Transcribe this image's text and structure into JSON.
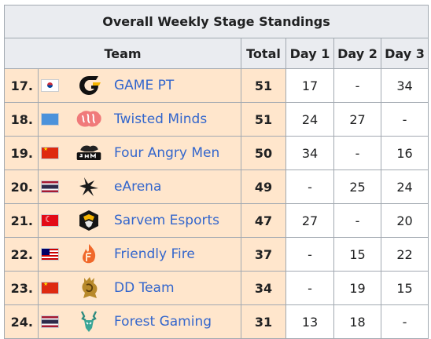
{
  "title": "Overall Weekly Stage Standings",
  "headers": {
    "team": "Team",
    "total": "Total",
    "day1": "Day 1",
    "day2": "Day 2",
    "day3": "Day 3"
  },
  "colors": {
    "highlight": "#ffe6cc",
    "header": "#eaecf0",
    "link": "#3366cc",
    "border": "#a2a9b1"
  },
  "rows": [
    {
      "rank": "17.",
      "flag": "south-korea-flag-icon",
      "logo": "game-pt-logo-icon",
      "team": "GAME PT",
      "total": "51",
      "day1": "17",
      "day2": "-",
      "day3": "34"
    },
    {
      "rank": "18.",
      "flag": "united-nations-flag-icon",
      "logo": "twisted-minds-logo-icon",
      "team": "Twisted Minds",
      "total": "51",
      "day1": "24",
      "day2": "27",
      "day3": "-"
    },
    {
      "rank": "19.",
      "flag": "china-flag-icon",
      "logo": "four-angry-men-logo-icon",
      "team": "Four Angry Men",
      "total": "50",
      "day1": "34",
      "day2": "-",
      "day3": "16"
    },
    {
      "rank": "20.",
      "flag": "thailand-flag-icon",
      "logo": "earena-logo-icon",
      "team": "eArena",
      "total": "49",
      "day1": "-",
      "day2": "25",
      "day3": "24"
    },
    {
      "rank": "21.",
      "flag": "turkey-flag-icon",
      "logo": "sarvem-esports-logo-icon",
      "team": "Sarvem Esports",
      "total": "47",
      "day1": "27",
      "day2": "-",
      "day3": "20"
    },
    {
      "rank": "22.",
      "flag": "malaysia-flag-icon",
      "logo": "friendly-fire-logo-icon",
      "team": "Friendly Fire",
      "total": "37",
      "day1": "-",
      "day2": "15",
      "day3": "22"
    },
    {
      "rank": "23.",
      "flag": "china-flag-icon",
      "logo": "dd-team-logo-icon",
      "team": "DD Team",
      "total": "34",
      "day1": "-",
      "day2": "19",
      "day3": "15"
    },
    {
      "rank": "24.",
      "flag": "thailand-flag-icon",
      "logo": "forest-gaming-logo-icon",
      "team": "Forest Gaming",
      "total": "31",
      "day1": "13",
      "day2": "18",
      "day3": "-"
    }
  ]
}
